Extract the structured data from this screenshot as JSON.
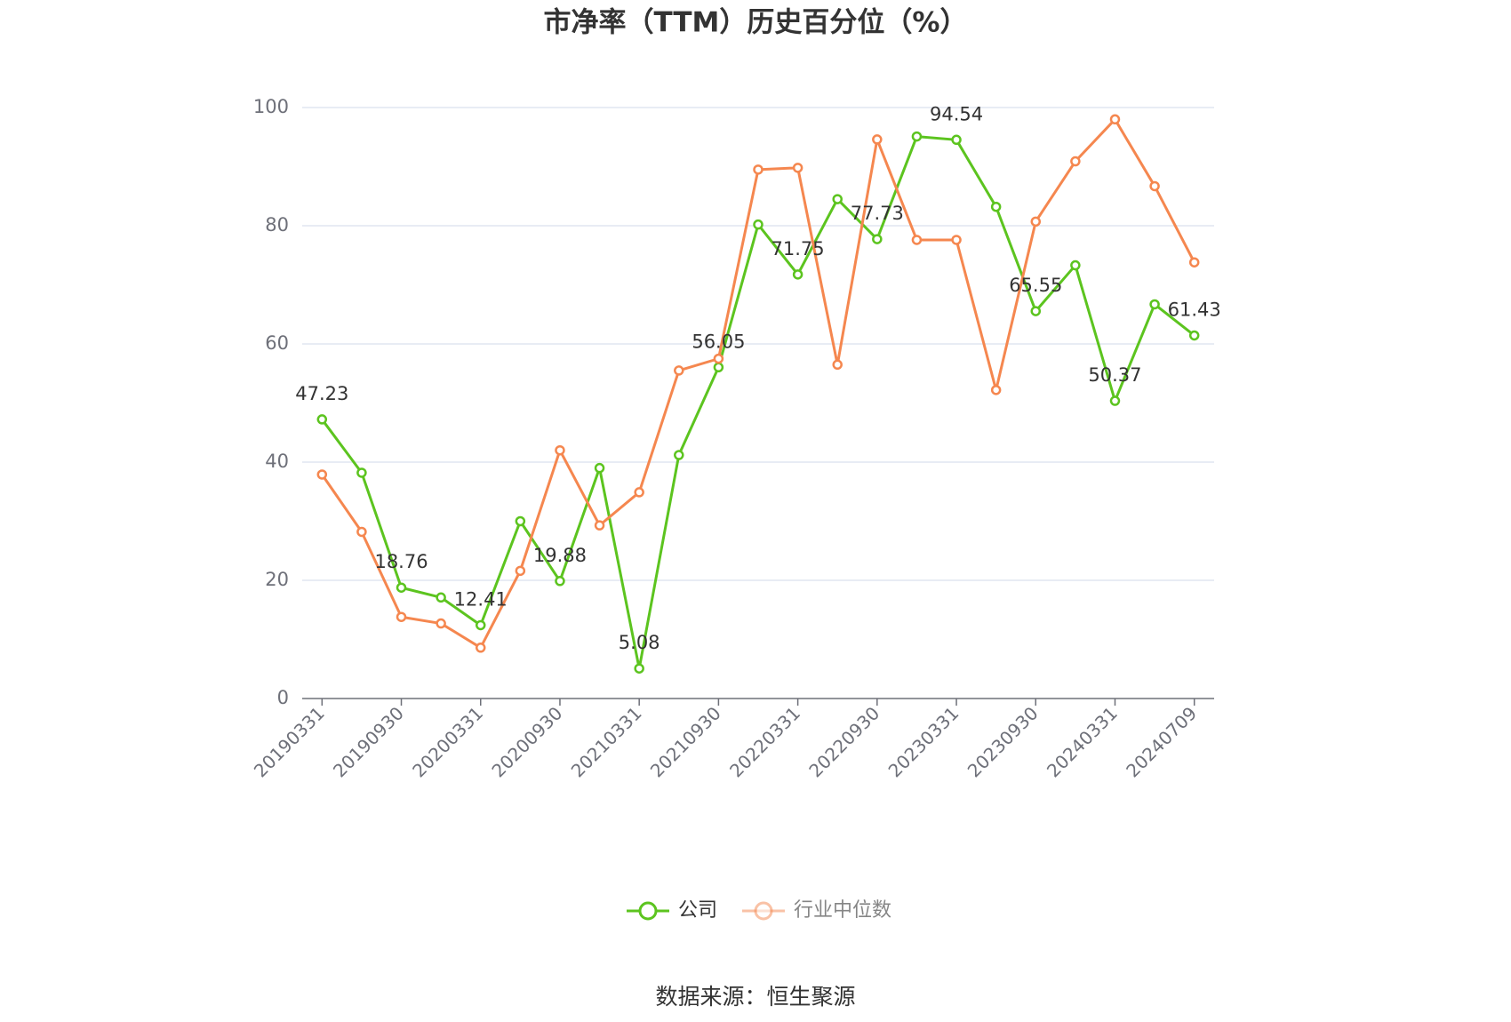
{
  "chart_data": {
    "type": "line",
    "title": "市净率（TTM）历史百分位（%）",
    "categories": [
      "20190331",
      null,
      "20190930",
      null,
      "20200331",
      null,
      "20200930",
      null,
      "20210331",
      null,
      "20210930",
      null,
      "20220331",
      null,
      "20220930",
      null,
      "20230331",
      null,
      "20230930",
      null,
      "20240331",
      null,
      "20240709"
    ],
    "series": [
      {
        "name": "公司",
        "color": "#5cc41f",
        "values": [
          47.23,
          38.2,
          18.76,
          17.1,
          12.41,
          30.0,
          19.88,
          39.0,
          5.08,
          41.2,
          56.05,
          80.2,
          71.75,
          84.5,
          77.73,
          95.1,
          94.54,
          83.2,
          65.55,
          73.3,
          50.37,
          66.7,
          61.43
        ],
        "value_labels": [
          "47.23",
          null,
          "18.76",
          null,
          "12.41",
          null,
          "19.88",
          null,
          "5.08",
          null,
          "56.05",
          null,
          "71.75",
          null,
          "77.73",
          null,
          "94.54",
          null,
          "65.55",
          null,
          "50.37",
          null,
          "61.43"
        ]
      },
      {
        "name": "行业中位数",
        "color": "#f5874f",
        "values": [
          37.9,
          28.2,
          13.8,
          12.7,
          8.6,
          21.6,
          42.0,
          29.3,
          34.9,
          55.5,
          57.5,
          89.5,
          89.8,
          56.5,
          94.6,
          77.6,
          77.6,
          52.2,
          80.7,
          90.9,
          98.0,
          86.7,
          73.8
        ]
      }
    ],
    "ylim": [
      0,
      100
    ],
    "yticks": [
      0,
      20,
      40,
      60,
      80,
      100
    ],
    "grid": true,
    "source": "数据来源：恒生聚源"
  }
}
